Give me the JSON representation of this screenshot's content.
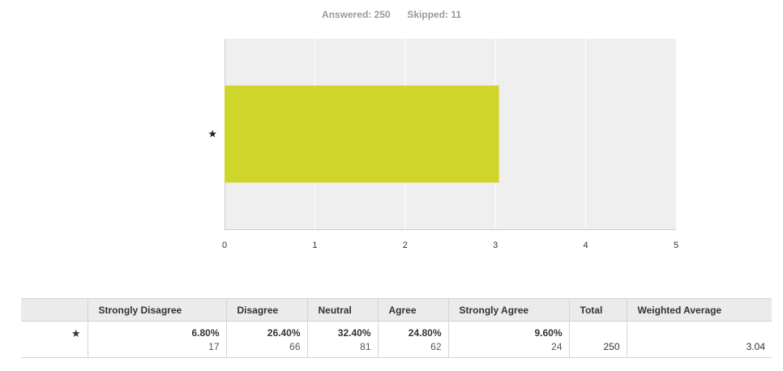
{
  "summary": {
    "answered_label": "Answered:",
    "answered_value": "250",
    "skipped_label": "Skipped:",
    "skipped_value": "11"
  },
  "chart_data": {
    "type": "bar",
    "orientation": "horizontal",
    "categories": [
      "★"
    ],
    "values": [
      3.04
    ],
    "xlim": [
      0,
      5
    ],
    "x_ticks": [
      "0",
      "1",
      "2",
      "3",
      "4",
      "5"
    ],
    "grid": true,
    "bar_color": "#cfd52a",
    "background_color": "#efefef"
  },
  "table": {
    "headers": [
      "",
      "Strongly Disagree",
      "Disagree",
      "Neutral",
      "Agree",
      "Strongly Agree",
      "Total",
      "Weighted Average"
    ],
    "row": {
      "label": "★",
      "cells": [
        {
          "pct": "6.80%",
          "count": "17"
        },
        {
          "pct": "26.40%",
          "count": "66"
        },
        {
          "pct": "32.40%",
          "count": "81"
        },
        {
          "pct": "24.80%",
          "count": "62"
        },
        {
          "pct": "9.60%",
          "count": "24"
        }
      ],
      "total": "250",
      "weighted_average": "3.04"
    }
  }
}
